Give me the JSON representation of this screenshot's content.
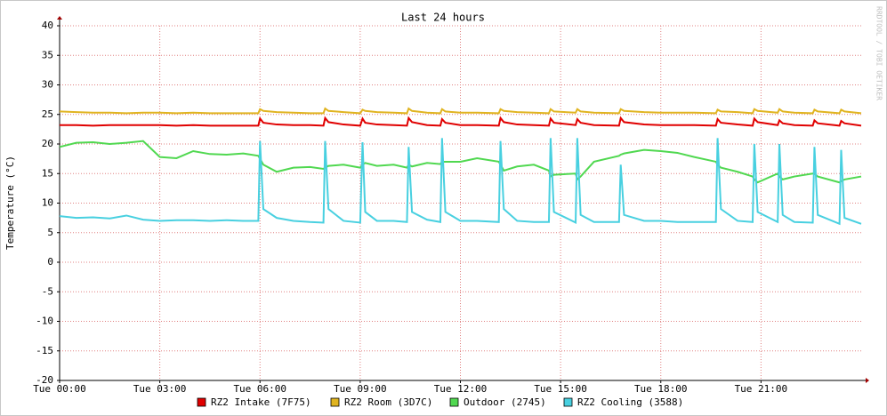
{
  "chart_data": {
    "type": "line",
    "title": "Last 24 hours",
    "y_label": "Temperature (°C)",
    "watermark": "RRDTOOL / TOBI OETIKER",
    "x": [
      0,
      0.5,
      1,
      1.5,
      2,
      2.5,
      3,
      3.5,
      4,
      4.5,
      5,
      5.5,
      5.95,
      6.0,
      6.1,
      6.5,
      7,
      7.5,
      7.9,
      7.95,
      8.05,
      8.5,
      9.0,
      9.07,
      9.15,
      9.5,
      10,
      10.4,
      10.45,
      10.55,
      11,
      11.4,
      11.45,
      11.55,
      12,
      12.5,
      13.15,
      13.2,
      13.3,
      13.7,
      14.2,
      14.65,
      14.7,
      14.8,
      15.45,
      15.5,
      15.6,
      16,
      16.75,
      16.8,
      16.9,
      17.5,
      18,
      18.5,
      19,
      19.65,
      19.7,
      19.8,
      20.3,
      20.75,
      20.8,
      20.9,
      21.5,
      21.55,
      21.65,
      22,
      22.55,
      22.6,
      22.7,
      23.35,
      23.4,
      23.5,
      24
    ],
    "xlim": [
      0,
      24
    ],
    "xticks": [
      {
        "value": 0,
        "label": "Tue 00:00"
      },
      {
        "value": 3,
        "label": "Tue 03:00"
      },
      {
        "value": 6,
        "label": "Tue 06:00"
      },
      {
        "value": 9,
        "label": "Tue 09:00"
      },
      {
        "value": 12,
        "label": "Tue 12:00"
      },
      {
        "value": 15,
        "label": "Tue 15:00"
      },
      {
        "value": 18,
        "label": "Tue 18:00"
      },
      {
        "value": 21,
        "label": "Tue 21:00"
      }
    ],
    "ylim": [
      -20,
      40
    ],
    "yticks": [
      -20,
      -15,
      -10,
      -5,
      0,
      5,
      10,
      15,
      20,
      25,
      30,
      35,
      40
    ],
    "grid": true,
    "series": [
      {
        "name": "RZ2 Intake (7F75)",
        "color": "#e00000",
        "values": [
          23.2,
          23.2,
          23.1,
          23.2,
          23.2,
          23.2,
          23.2,
          23.1,
          23.2,
          23.1,
          23.1,
          23.1,
          23.1,
          24.3,
          23.6,
          23.3,
          23.2,
          23.2,
          23.1,
          24.4,
          23.7,
          23.3,
          23.1,
          24.3,
          23.6,
          23.3,
          23.2,
          23.1,
          24.4,
          23.7,
          23.2,
          23.1,
          24.2,
          23.6,
          23.2,
          23.2,
          23.1,
          24.4,
          23.7,
          23.3,
          23.2,
          23.1,
          24.3,
          23.6,
          23.2,
          24.2,
          23.6,
          23.2,
          23.1,
          24.4,
          23.7,
          23.3,
          23.2,
          23.2,
          23.2,
          23.1,
          24.2,
          23.6,
          23.3,
          23.1,
          24.3,
          23.7,
          23.2,
          24.0,
          23.5,
          23.2,
          23.1,
          24.0,
          23.5,
          23.1,
          23.9,
          23.5,
          23.1
        ]
      },
      {
        "name": "RZ2 Room (3D7C)",
        "color": "#e0b420",
        "values": [
          25.5,
          25.4,
          25.3,
          25.3,
          25.2,
          25.3,
          25.3,
          25.2,
          25.3,
          25.2,
          25.2,
          25.2,
          25.2,
          25.9,
          25.6,
          25.4,
          25.3,
          25.2,
          25.2,
          26.0,
          25.6,
          25.4,
          25.2,
          25.8,
          25.6,
          25.4,
          25.3,
          25.2,
          26.0,
          25.6,
          25.3,
          25.2,
          25.9,
          25.5,
          25.3,
          25.3,
          25.2,
          25.9,
          25.6,
          25.4,
          25.3,
          25.2,
          25.9,
          25.5,
          25.3,
          25.9,
          25.5,
          25.3,
          25.2,
          25.9,
          25.6,
          25.4,
          25.3,
          25.3,
          25.3,
          25.2,
          25.8,
          25.5,
          25.4,
          25.2,
          25.9,
          25.6,
          25.3,
          25.9,
          25.5,
          25.3,
          25.2,
          25.8,
          25.5,
          25.2,
          25.8,
          25.5,
          25.2
        ]
      },
      {
        "name": "Outdoor (2745)",
        "color": "#50d850",
        "values": [
          19.5,
          20.2,
          20.3,
          20.0,
          20.2,
          20.5,
          17.8,
          17.6,
          18.8,
          18.3,
          18.2,
          18.4,
          18.0,
          17.5,
          16.5,
          15.3,
          16.0,
          16.1,
          15.8,
          16.0,
          16.3,
          16.5,
          16.0,
          16.5,
          16.8,
          16.3,
          16.5,
          16.0,
          16.5,
          16.2,
          16.8,
          16.6,
          17.0,
          17.0,
          17.0,
          17.6,
          17.0,
          16.5,
          15.5,
          16.2,
          16.5,
          15.5,
          14.5,
          14.8,
          15.0,
          14.0,
          14.5,
          17.0,
          18.0,
          18.2,
          18.4,
          19.0,
          18.8,
          18.5,
          17.8,
          17.0,
          16.5,
          16.0,
          15.3,
          14.5,
          14.0,
          13.5,
          15.0,
          14.5,
          14.0,
          14.5,
          15.0,
          15.0,
          14.5,
          13.5,
          13.7,
          14.0,
          14.5
        ]
      },
      {
        "name": "RZ2 Cooling (3588)",
        "color": "#48d0e0",
        "values": [
          7.8,
          7.5,
          7.6,
          7.4,
          7.9,
          7.2,
          7.0,
          7.1,
          7.1,
          7.0,
          7.1,
          7.0,
          7.0,
          20.5,
          9.0,
          7.5,
          7.0,
          6.8,
          6.7,
          20.5,
          9.0,
          7.0,
          6.7,
          20.3,
          8.5,
          7.0,
          7.0,
          6.8,
          19.5,
          8.5,
          7.2,
          6.8,
          21.0,
          8.5,
          7.0,
          7.0,
          6.8,
          20.5,
          9.0,
          7.0,
          6.8,
          6.8,
          21.0,
          8.5,
          6.7,
          21.0,
          8.0,
          6.8,
          6.8,
          16.5,
          8.0,
          7.0,
          7.0,
          6.8,
          6.8,
          6.8,
          21.0,
          9.0,
          7.0,
          6.8,
          20.0,
          8.5,
          6.8,
          20.0,
          8.0,
          6.8,
          6.7,
          19.5,
          8.0,
          6.5,
          19.0,
          7.5,
          6.5
        ]
      }
    ]
  }
}
